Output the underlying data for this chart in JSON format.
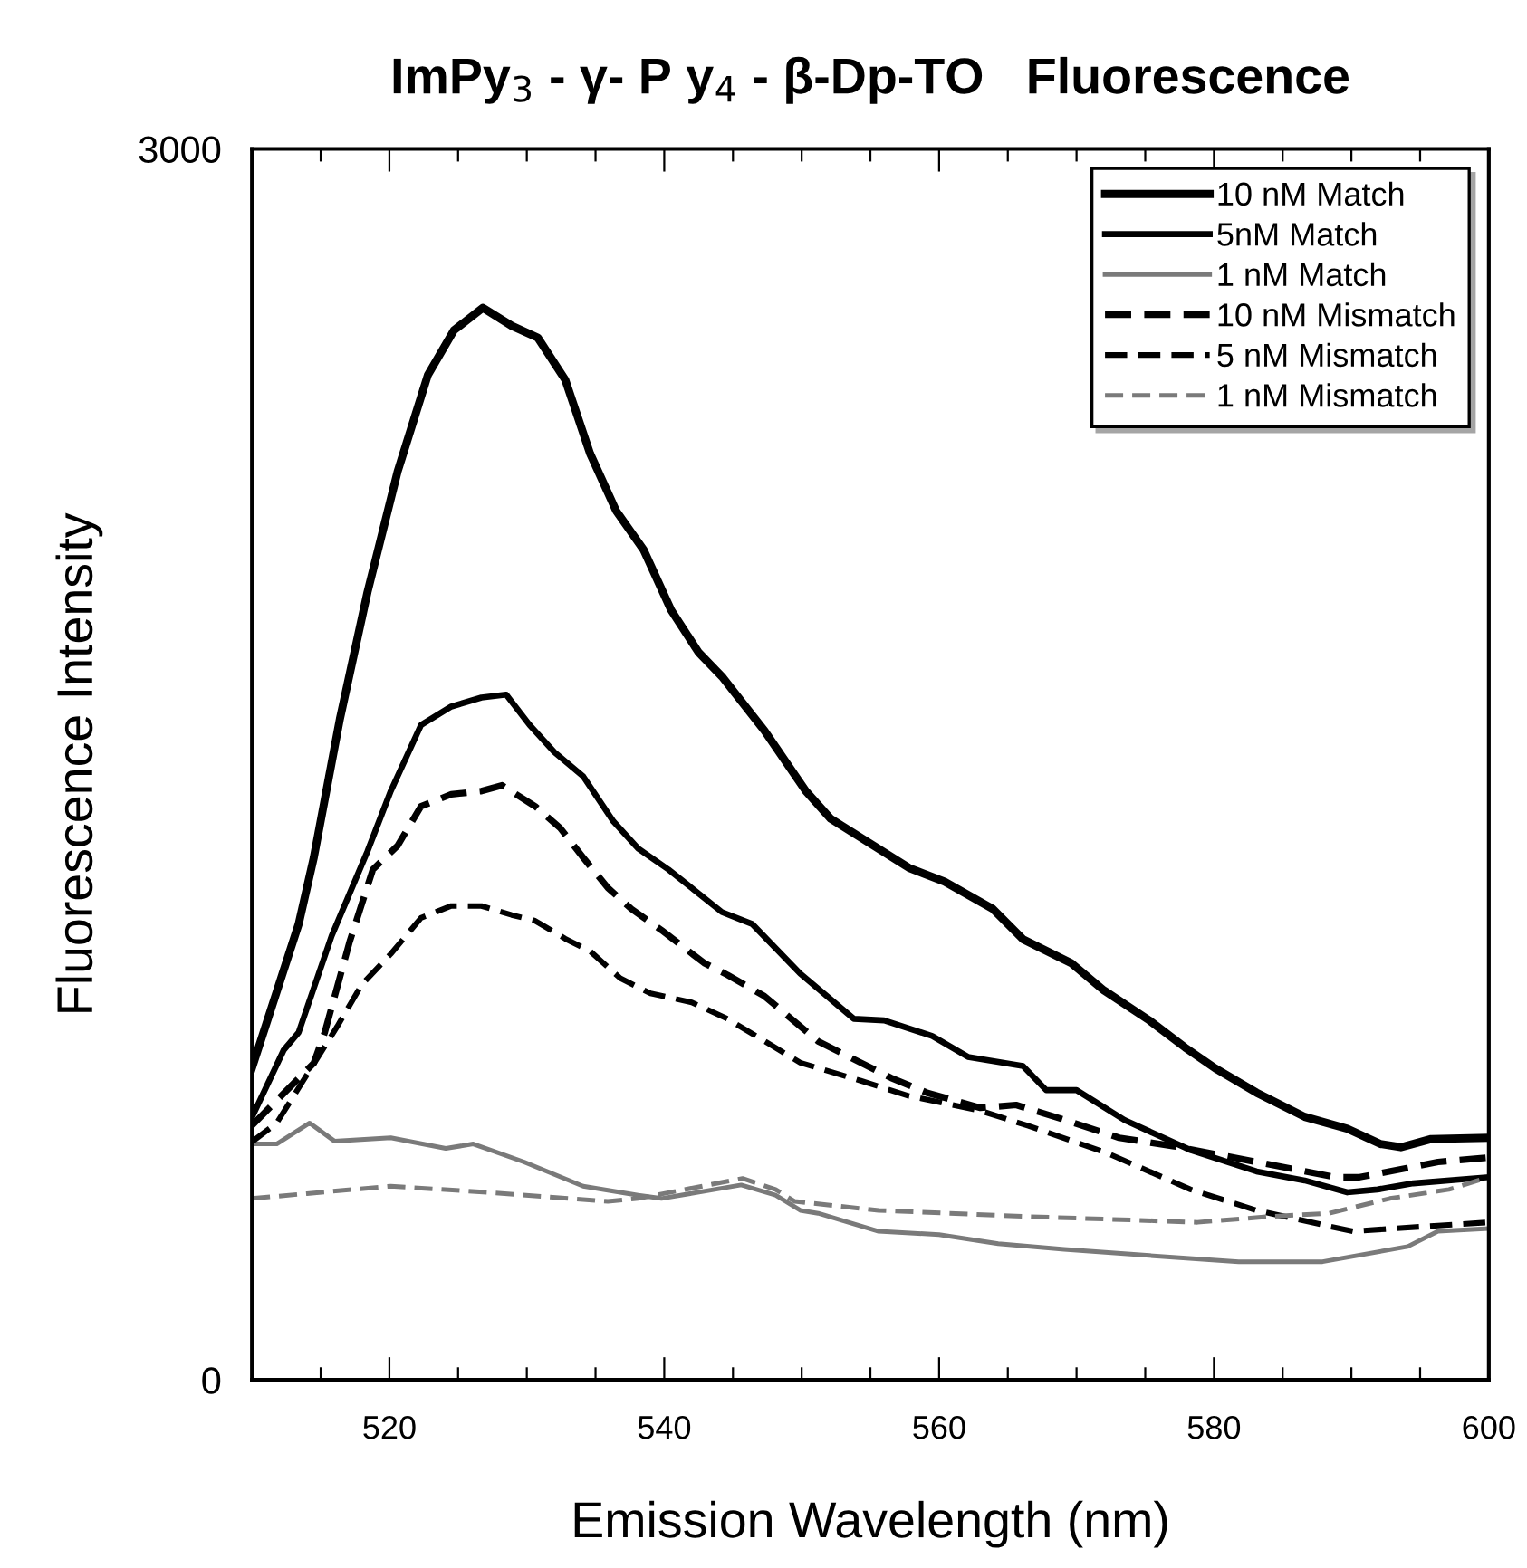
{
  "chart_data": {
    "type": "line",
    "title": "ImPy$_{3}$ - γ- P y$_{4}$ - β-Dp-TO   Fluorescence",
    "xlabel": "Emission Wavelength (nm)",
    "ylabel": "Fluorescence Intensity",
    "xlim": [
      510,
      600
    ],
    "ylim": [
      0,
      3000
    ],
    "xticks": [
      {
        "value": 515,
        "label": null
      },
      520,
      {
        "value": 525,
        "label": null
      },
      {
        "value": 530,
        "label": null
      },
      {
        "value": 535,
        "label": null
      },
      540,
      {
        "value": 545,
        "label": null
      },
      {
        "value": 550,
        "label": null
      },
      {
        "value": 555,
        "label": null
      },
      560,
      {
        "value": 565,
        "label": null
      },
      {
        "value": 570,
        "label": null
      },
      {
        "value": 575,
        "label": null
      },
      580,
      {
        "value": 585,
        "label": null
      },
      {
        "value": 590,
        "label": null
      },
      {
        "value": 595,
        "label": null
      },
      600
    ],
    "yticks": [
      0,
      3000
    ],
    "grid": false,
    "legend": "top right",
    "marker": "none",
    "series": [
      {
        "name": "10 nM Match",
        "color": "#000000",
        "line_style": "solid",
        "x": [
          510,
          513.4,
          514.5,
          516.4,
          518.4,
          520.6,
          522.8,
          524.7,
          526.8,
          528.9,
          530.8,
          532.8,
          534.6,
          536.5,
          538.5,
          540.5,
          542.5,
          544.2,
          547.3,
          550.3,
          552.1,
          557.8,
          560.4,
          563.9,
          566.1,
          569.6,
          572.0,
          575.3,
          577.9,
          580.1,
          583.1,
          586.6,
          589.7,
          592.1,
          593.6,
          595.8,
          600
        ],
        "values": [
          760,
          1111,
          1273,
          1611,
          1919,
          2214,
          2449,
          2558,
          2613,
          2569,
          2540,
          2437,
          2258,
          2118,
          2023,
          1876,
          1773,
          1714,
          1582,
          1435,
          1368,
          1248,
          1214,
          1148,
          1074,
          1016,
          949,
          876,
          810,
          759,
          700,
          641,
          612,
          575,
          567,
          587,
          590
        ]
      },
      {
        "name": "5nM Match",
        "color": "#000000",
        "line_style": "solid",
        "x": [
          510,
          512.3,
          513.4,
          515.8,
          518.4,
          520.1,
          522.3,
          524.5,
          526.7,
          528.5,
          530.2,
          532.0,
          534.1,
          536.3,
          538.1,
          540.3,
          544.2,
          546.4,
          549.9,
          553.8,
          556.0,
          559.5,
          562.1,
          566.1,
          567.8,
          570.0,
          573.5,
          578.3,
          583.1,
          586.6,
          589.7,
          591.9,
          594.5,
          600
        ],
        "values": [
          640,
          803,
          847,
          1082,
          1288,
          1435,
          1596,
          1641,
          1663,
          1670,
          1596,
          1530,
          1471,
          1361,
          1295,
          1244,
          1140,
          1111,
          990,
          880,
          876,
          838,
          787,
          765,
          706,
          706,
          633,
          560,
          508,
          486,
          457,
          464,
          479,
          494
        ]
      },
      {
        "name": "1 nM Match",
        "color": "#7a7a7a",
        "line_style": "solid",
        "x": [
          510,
          511.8,
          514.2,
          516.0,
          520.1,
          524.1,
          526.1,
          529.8,
          534.1,
          538.1,
          539.8,
          545.6,
          548.1,
          549.9,
          551.2,
          555.6,
          560.0,
          564.3,
          569.1,
          575.3,
          581.8,
          587.9,
          594.1,
          596.3,
          600
        ],
        "values": [
          575,
          575,
          626,
          582,
          590,
          564,
          575,
          531,
          472,
          450,
          442,
          475,
          450,
          413,
          406,
          362,
          354,
          332,
          318,
          303,
          288,
          288,
          325,
          362,
          369
        ]
      },
      {
        "name": "10 nM Mismatch",
        "color": "#000000",
        "line_style": "dashed",
        "x": [
          510,
          514.5,
          515.3,
          517.1,
          518.8,
          520.6,
          522.3,
          524.5,
          526.7,
          528.2,
          530.6,
          532.4,
          534.1,
          535.9,
          537.6,
          539.8,
          542.9,
          544.6,
          547.3,
          551.2,
          556.5,
          559.1,
          563.0,
          565.6,
          569.1,
          573.1,
          577.0,
          583.1,
          588.8,
          590.6,
          596.3,
          600
        ],
        "values": [
          620,
          772,
          847,
          1067,
          1244,
          1302,
          1398,
          1427,
          1435,
          1449,
          1398,
          1346,
          1273,
          1199,
          1148,
          1096,
          1016,
          987,
          935,
          825,
          736,
          700,
          663,
          670,
          634,
          590,
          570,
          531,
          494,
          494,
          531,
          542
        ]
      },
      {
        "name": "5 nM Mismatch",
        "color": "#000000",
        "line_style": "dashed",
        "x": [
          510,
          511.8,
          516.2,
          518.0,
          520.1,
          522.3,
          524.5,
          526.7,
          528.9,
          530.6,
          532.8,
          534.6,
          536.8,
          539.0,
          542.0,
          544.6,
          549.9,
          554.3,
          557.8,
          563.0,
          566.5,
          572.2,
          578.3,
          583.1,
          590.1,
          596.3,
          600
        ],
        "values": [
          580,
          626,
          861,
          964,
          1038,
          1126,
          1155,
          1155,
          1133,
          1119,
          1075,
          1045,
          979,
          942,
          920,
          880,
          773,
          729,
          692,
          656,
          619,
          553,
          464,
          413,
          362,
          376,
          384
        ]
      },
      {
        "name": "1 nM Mismatch",
        "color": "#7a7a7a",
        "line_style": "dashed",
        "x": [
          510,
          514.0,
          520.1,
          527.2,
          535.9,
          538.1,
          545.7,
          548.1,
          549.5,
          555.6,
          566.5,
          578.8,
          584.0,
          588.4,
          592.8,
          597.1,
          600
        ],
        "values": [
          442,
          454,
          472,
          457,
          435,
          442,
          491,
          464,
          435,
          413,
          398,
          384,
          398,
          406,
          442,
          464,
          494
        ]
      }
    ]
  }
}
